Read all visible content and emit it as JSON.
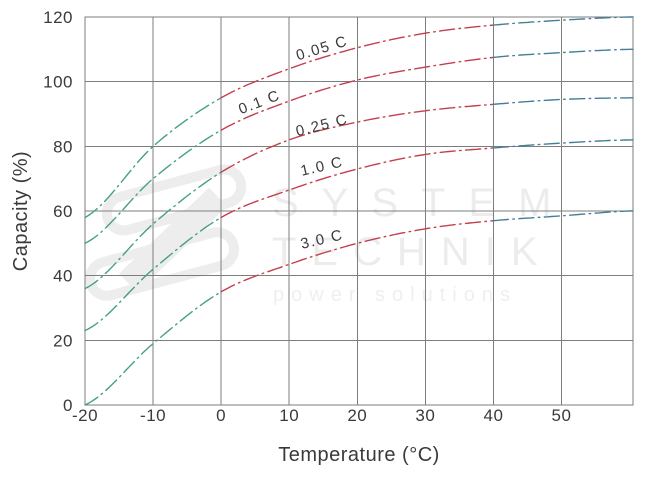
{
  "watermark": {
    "brand_line1": "SYSTEM",
    "brand_line2": "TECHNIK",
    "tagline": "power solutions"
  },
  "chart_data": {
    "type": "line",
    "title": "",
    "xlabel": "Temperature (°C)",
    "ylabel": "Capacity (%)",
    "xlim": [
      -20,
      60.5
    ],
    "ylim": [
      0,
      120
    ],
    "x_ticks": [
      -20,
      -10,
      0,
      10,
      20,
      30,
      40,
      50
    ],
    "y_ticks": [
      0,
      20,
      40,
      60,
      80,
      100,
      120
    ],
    "grid": true,
    "legend": "inline curve labels",
    "line_style": "dash-dot",
    "x": [
      -20,
      -10,
      0,
      10,
      20,
      30,
      40,
      50,
      60
    ],
    "series": [
      {
        "name": "0.05 C",
        "values": [
          58,
          80,
          95,
          104,
          110.5,
          115,
          117.5,
          119,
          120
        ]
      },
      {
        "name": "0.1 C",
        "values": [
          50,
          70,
          85,
          94,
          100.5,
          104.5,
          107.5,
          109,
          110
        ]
      },
      {
        "name": "0.25 C",
        "values": [
          36,
          56,
          72,
          82,
          87.5,
          91,
          93,
          94.5,
          95
        ]
      },
      {
        "name": "1.0 C",
        "values": [
          23,
          42,
          58,
          66.5,
          73,
          77.5,
          79.5,
          81,
          82
        ]
      },
      {
        "name": "3.0 C",
        "values": [
          0,
          19,
          35,
          43.5,
          50,
          54.5,
          57,
          58.5,
          60
        ]
      }
    ],
    "segment_colors": [
      {
        "t_range": [
          -20,
          0
        ],
        "color": "#46a083",
        "meaning": "below 0 °C"
      },
      {
        "t_range": [
          0,
          40
        ],
        "color": "#c3404a",
        "meaning": "0 to 40 °C"
      },
      {
        "t_range": [
          40,
          60.5
        ],
        "color": "#457e97",
        "meaning": "above 40 °C"
      }
    ],
    "curve_labels": [
      {
        "text": "0.05 C",
        "t": 14.8,
        "cap": 110.4,
        "angle": -17
      },
      {
        "text": "0.1 C",
        "t": 5.6,
        "cap": 93.7,
        "angle": -21
      },
      {
        "text": "0.25 C",
        "t": 14.8,
        "cap": 86.6,
        "angle": -14
      },
      {
        "text": "1.0 C",
        "t": 14.8,
        "cap": 73.9,
        "angle": -13
      },
      {
        "text": "3.0 C",
        "t": 14.8,
        "cap": 51.3,
        "angle": -13
      }
    ],
    "style": {
      "grid_color": "#7d7d7d",
      "text_color": "#3a3a3a",
      "watermark_color": "#ececec",
      "dash_pattern": [
        15,
        4.5,
        1.5,
        4.5
      ]
    }
  }
}
